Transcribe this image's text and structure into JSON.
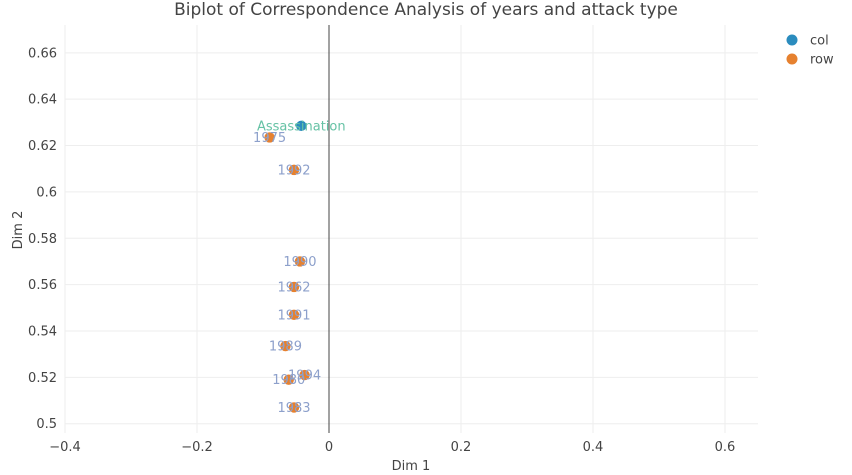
{
  "chart_data": {
    "type": "scatter",
    "title": "Biplot of Correspondence Analysis of years and attack type",
    "xlabel": "Dim 1",
    "ylabel": "Dim 2",
    "xlim": [
      -0.4,
      0.65
    ],
    "ylim": [
      0.496,
      0.672
    ],
    "x_ticks": [
      -0.4,
      -0.2,
      0,
      0.2,
      0.4,
      0.6
    ],
    "x_tick_labels": [
      "−0.4",
      "−0.2",
      "0",
      "0.2",
      "0.4",
      "0.6"
    ],
    "y_ticks": [
      0.5,
      0.52,
      0.54,
      0.56,
      0.58,
      0.6,
      0.62,
      0.64,
      0.66
    ],
    "y_tick_labels": [
      "0.5",
      "0.52",
      "0.54",
      "0.56",
      "0.58",
      "0.6",
      "0.62",
      "0.64",
      "0.66"
    ],
    "grid": true,
    "zero_line_x": true,
    "legend_position": "top-right",
    "series": [
      {
        "name": "col",
        "color": "#2b8cbe",
        "label_color": "#66c2a5",
        "points": [
          {
            "x": -0.042,
            "y": 0.6285,
            "label": "Assassination"
          }
        ]
      },
      {
        "name": "row",
        "color": "#e6812f",
        "label_color": "#8da0cb",
        "points": [
          {
            "x": -0.09,
            "y": 0.6235,
            "label": "1975"
          },
          {
            "x": -0.053,
            "y": 0.6095,
            "label": "1992"
          },
          {
            "x": -0.044,
            "y": 0.57,
            "label": "1990"
          },
          {
            "x": -0.053,
            "y": 0.559,
            "label": "1962"
          },
          {
            "x": -0.053,
            "y": 0.547,
            "label": "1991"
          },
          {
            "x": -0.066,
            "y": 0.5335,
            "label": "1989"
          },
          {
            "x": -0.037,
            "y": 0.521,
            "label": "1994"
          },
          {
            "x": -0.061,
            "y": 0.519,
            "label": "1980"
          },
          {
            "x": -0.053,
            "y": 0.507,
            "label": "1983"
          }
        ]
      }
    ]
  }
}
